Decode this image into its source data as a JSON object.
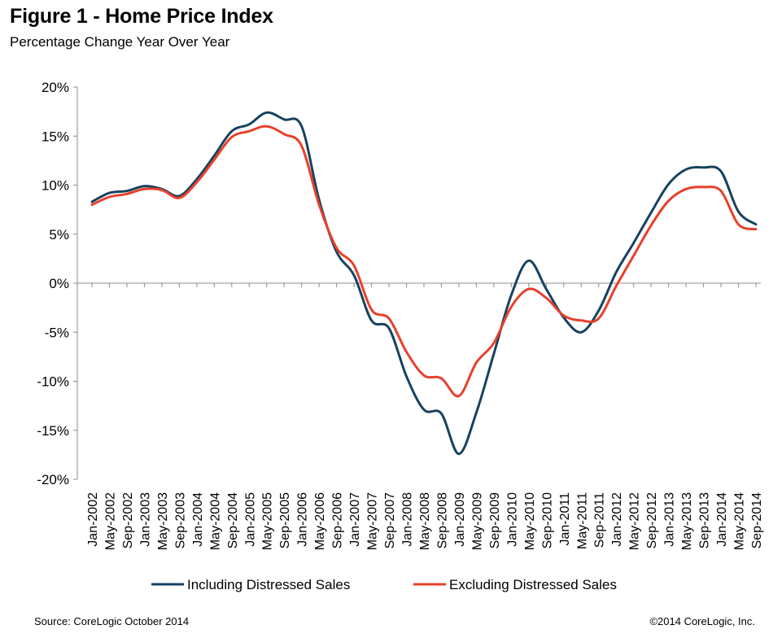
{
  "header": {
    "title": "Figure 1 - Home Price Index",
    "subtitle": "Percentage Change Year Over Year"
  },
  "footer": {
    "source": "Source: CoreLogic  October 2014",
    "copyright": "©2014 CoreLogic, Inc."
  },
  "chart_data": {
    "type": "line",
    "title": "Figure 1 - Home Price Index",
    "subtitle": "Percentage Change Year Over Year",
    "ylim": [
      -20,
      20
    ],
    "yticks": [
      20,
      15,
      10,
      5,
      0,
      -5,
      -10,
      -15,
      -20
    ],
    "ytick_labels": [
      "20%",
      "15%",
      "10%",
      "5%",
      "0%",
      "-5%",
      "-10%",
      "-15%",
      "-20%"
    ],
    "y_unit": "%",
    "x_start": "Jan-2002",
    "x_end": "Sep-2014",
    "x_tick_labels": [
      "Jan-2002",
      "May-2002",
      "Sep-2002",
      "Jan-2003",
      "May-2003",
      "Sep-2003",
      "Jan-2004",
      "May-2004",
      "Sep-2004",
      "Jan-2005",
      "May-2005",
      "Sep-2005",
      "Jan-2006",
      "May-2006",
      "Sep-2006",
      "Jan-2007",
      "May-2007",
      "Sep-2007",
      "Jan-2008",
      "May-2008",
      "Sep-2008",
      "Jan-2009",
      "May-2009",
      "Sep-2009",
      "Jan-2010",
      "May-2010",
      "Sep-2010",
      "Jan-2011",
      "May-2011",
      "Sep-2011",
      "Jan-2012",
      "May-2012",
      "Sep-2012",
      "Jan-2013",
      "May-2013",
      "Sep-2013",
      "Jan-2014",
      "May-2014",
      "Sep-2014"
    ],
    "grid": false,
    "legend_position": "bottom",
    "series": [
      {
        "name": "Including Distressed Sales",
        "color": "#17425f",
        "values": [
          8.3,
          9.2,
          9.4,
          9.9,
          9.6,
          8.9,
          10.6,
          13.0,
          15.5,
          16.2,
          17.4,
          16.7,
          16.0,
          8.5,
          3.2,
          0.8,
          -3.8,
          -4.6,
          -9.5,
          -12.9,
          -13.3,
          -17.4,
          -13.2,
          -7.2,
          -1.2,
          2.3,
          -0.6,
          -3.5,
          -5.0,
          -2.8,
          1.1,
          4.1,
          7.2,
          10.1,
          11.6,
          11.8,
          11.4,
          7.3,
          6.0
        ]
      },
      {
        "name": "Excluding Distressed Sales",
        "color": "#e8402b",
        "values": [
          8.0,
          8.8,
          9.1,
          9.6,
          9.5,
          8.7,
          10.3,
          12.6,
          14.9,
          15.5,
          16.0,
          15.2,
          14.0,
          8.0,
          3.6,
          1.8,
          -2.7,
          -3.6,
          -7.0,
          -9.4,
          -9.7,
          -11.5,
          -8.1,
          -6.1,
          -2.4,
          -0.6,
          -1.5,
          -3.3,
          -3.8,
          -3.6,
          -0.3,
          2.8,
          5.9,
          8.4,
          9.6,
          9.8,
          9.4,
          6.0,
          5.5
        ]
      }
    ]
  }
}
